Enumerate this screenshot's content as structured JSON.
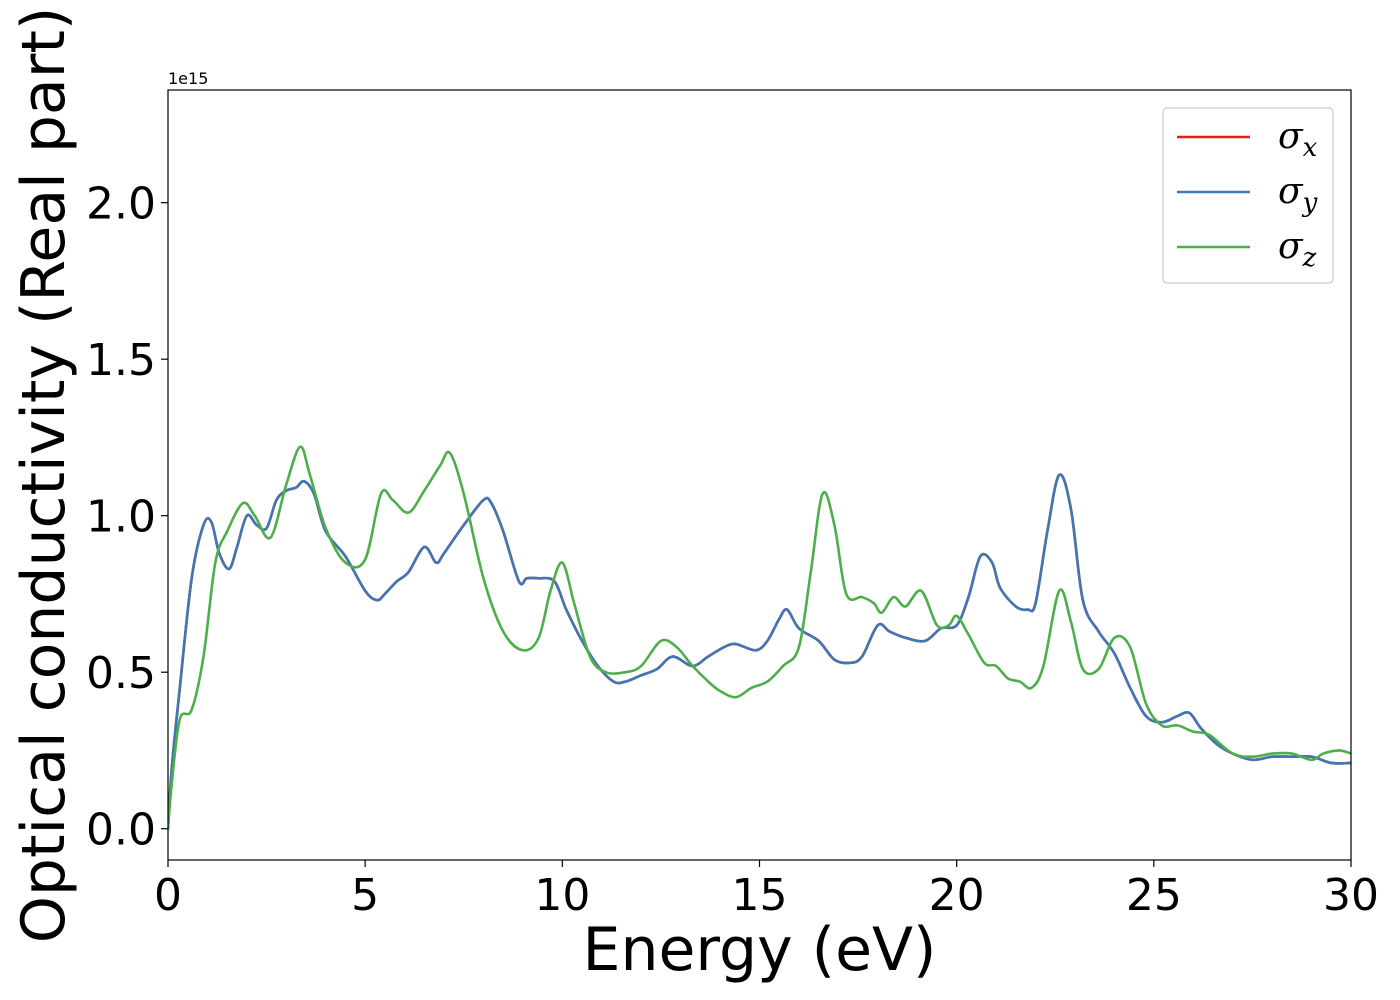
{
  "chart_data": {
    "type": "line",
    "xlabel": "Energy (eV)",
    "ylabel": "Optical conductivity (Real part)",
    "y_offset_label": "1e15",
    "xlim": [
      0,
      30
    ],
    "ylim": [
      -0.1,
      2.36
    ],
    "xticks": [
      0,
      5,
      10,
      15,
      20,
      25,
      30
    ],
    "xtick_labels": [
      "0",
      "5",
      "10",
      "15",
      "20",
      "25",
      "30"
    ],
    "yticks": [
      0.0,
      0.5,
      1.0,
      1.5,
      2.0
    ],
    "ytick_labels": [
      "0.0",
      "0.5",
      "1.0",
      "1.5",
      "2.0"
    ],
    "grid": false,
    "legend_position": "top-right",
    "series": [
      {
        "name": "σx",
        "symbol": "σ",
        "subscript": "x",
        "color": "#e41a1c",
        "x": [
          0,
          0.1,
          0.3,
          0.6,
          0.9,
          1.1,
          1.3,
          1.55,
          1.75,
          2.0,
          2.25,
          2.5,
          2.75,
          3.0,
          3.25,
          3.45,
          3.7,
          4.0,
          4.5,
          5.0,
          5.3,
          5.5,
          5.8,
          6.1,
          6.5,
          6.8,
          7.0,
          7.5,
          8.0,
          8.2,
          8.5,
          8.9,
          9.1,
          9.4,
          9.8,
          10.1,
          10.5,
          10.9,
          11.3,
          11.6,
          12.0,
          12.4,
          12.8,
          13.3,
          13.7,
          14.1,
          14.4,
          14.9,
          15.2,
          15.5,
          15.7,
          16.0,
          16.5,
          16.9,
          17.3,
          17.6,
          18.0,
          18.3,
          18.7,
          19.2,
          19.6,
          20.0,
          20.3,
          20.6,
          20.9,
          21.1,
          21.5,
          21.8,
          22.0,
          22.3,
          22.6,
          22.9,
          23.2,
          23.6,
          24.0,
          24.4,
          24.8,
          25.2,
          25.6,
          25.9,
          26.2,
          26.6,
          27.0,
          27.5,
          28.0,
          28.5,
          29.0,
          29.5,
          30.0
        ],
        "y": [
          0.0,
          0.2,
          0.45,
          0.8,
          0.97,
          0.98,
          0.88,
          0.83,
          0.9,
          1.0,
          0.97,
          0.96,
          1.05,
          1.08,
          1.09,
          1.11,
          1.07,
          0.95,
          0.87,
          0.76,
          0.73,
          0.75,
          0.79,
          0.82,
          0.9,
          0.85,
          0.88,
          0.97,
          1.05,
          1.04,
          0.95,
          0.79,
          0.8,
          0.8,
          0.79,
          0.7,
          0.6,
          0.52,
          0.47,
          0.47,
          0.49,
          0.51,
          0.55,
          0.52,
          0.55,
          0.58,
          0.59,
          0.57,
          0.6,
          0.67,
          0.7,
          0.64,
          0.6,
          0.54,
          0.53,
          0.55,
          0.65,
          0.63,
          0.61,
          0.6,
          0.64,
          0.65,
          0.74,
          0.87,
          0.85,
          0.77,
          0.71,
          0.7,
          0.72,
          0.95,
          1.13,
          1.02,
          0.73,
          0.63,
          0.56,
          0.45,
          0.36,
          0.34,
          0.36,
          0.37,
          0.32,
          0.27,
          0.24,
          0.22,
          0.23,
          0.23,
          0.23,
          0.21,
          0.21
        ]
      },
      {
        "name": "σy",
        "symbol": "σ",
        "subscript": "y",
        "color": "#3f77b4",
        "x": [
          0,
          0.1,
          0.3,
          0.6,
          0.9,
          1.1,
          1.3,
          1.55,
          1.75,
          2.0,
          2.25,
          2.5,
          2.75,
          3.0,
          3.25,
          3.45,
          3.7,
          4.0,
          4.5,
          5.0,
          5.3,
          5.5,
          5.8,
          6.1,
          6.5,
          6.8,
          7.0,
          7.5,
          8.0,
          8.2,
          8.5,
          8.9,
          9.1,
          9.4,
          9.8,
          10.1,
          10.5,
          10.9,
          11.3,
          11.6,
          12.0,
          12.4,
          12.8,
          13.3,
          13.7,
          14.1,
          14.4,
          14.9,
          15.2,
          15.5,
          15.7,
          16.0,
          16.5,
          16.9,
          17.3,
          17.6,
          18.0,
          18.3,
          18.7,
          19.2,
          19.6,
          20.0,
          20.3,
          20.6,
          20.9,
          21.1,
          21.5,
          21.8,
          22.0,
          22.3,
          22.6,
          22.9,
          23.2,
          23.6,
          24.0,
          24.4,
          24.8,
          25.2,
          25.6,
          25.9,
          26.2,
          26.6,
          27.0,
          27.5,
          28.0,
          28.5,
          29.0,
          29.5,
          30.0
        ],
        "y": [
          0.0,
          0.2,
          0.45,
          0.8,
          0.97,
          0.98,
          0.88,
          0.83,
          0.9,
          1.0,
          0.97,
          0.96,
          1.05,
          1.08,
          1.09,
          1.11,
          1.07,
          0.95,
          0.87,
          0.76,
          0.73,
          0.75,
          0.79,
          0.82,
          0.9,
          0.85,
          0.88,
          0.97,
          1.05,
          1.04,
          0.95,
          0.79,
          0.8,
          0.8,
          0.79,
          0.7,
          0.6,
          0.52,
          0.47,
          0.47,
          0.49,
          0.51,
          0.55,
          0.52,
          0.55,
          0.58,
          0.59,
          0.57,
          0.6,
          0.67,
          0.7,
          0.64,
          0.6,
          0.54,
          0.53,
          0.55,
          0.65,
          0.63,
          0.61,
          0.6,
          0.64,
          0.65,
          0.74,
          0.87,
          0.85,
          0.77,
          0.71,
          0.7,
          0.72,
          0.95,
          1.13,
          1.02,
          0.73,
          0.63,
          0.56,
          0.45,
          0.36,
          0.34,
          0.36,
          0.37,
          0.32,
          0.27,
          0.24,
          0.22,
          0.23,
          0.23,
          0.23,
          0.21,
          0.21
        ]
      },
      {
        "name": "σz",
        "symbol": "σ",
        "subscript": "z",
        "color": "#4daf4a",
        "x": [
          0,
          0.1,
          0.3,
          0.6,
          0.9,
          1.2,
          1.5,
          1.9,
          2.2,
          2.6,
          3.0,
          3.35,
          3.6,
          4.0,
          4.5,
          5.0,
          5.4,
          5.7,
          6.1,
          6.5,
          6.9,
          7.15,
          7.5,
          8.0,
          8.5,
          9.0,
          9.4,
          9.7,
          10.0,
          10.3,
          10.7,
          11.1,
          11.6,
          12.0,
          12.5,
          12.9,
          13.3,
          13.7,
          14.0,
          14.4,
          14.8,
          15.2,
          15.6,
          16.0,
          16.3,
          16.6,
          16.9,
          17.2,
          17.6,
          17.9,
          18.1,
          18.4,
          18.7,
          19.1,
          19.5,
          19.8,
          20.0,
          20.3,
          20.7,
          21.0,
          21.3,
          21.6,
          21.9,
          22.2,
          22.6,
          22.9,
          23.2,
          23.6,
          24.0,
          24.4,
          24.8,
          25.2,
          25.6,
          26.0,
          26.4,
          27.0,
          27.5,
          28.0,
          28.5,
          29.0,
          29.3,
          29.7,
          30.0
        ],
        "y": [
          0.0,
          0.15,
          0.35,
          0.38,
          0.55,
          0.85,
          0.95,
          1.04,
          1.0,
          0.93,
          1.1,
          1.22,
          1.13,
          0.96,
          0.85,
          0.86,
          1.07,
          1.05,
          1.01,
          1.08,
          1.16,
          1.2,
          1.07,
          0.8,
          0.63,
          0.57,
          0.61,
          0.76,
          0.85,
          0.72,
          0.55,
          0.5,
          0.5,
          0.52,
          0.6,
          0.58,
          0.52,
          0.47,
          0.44,
          0.42,
          0.45,
          0.47,
          0.52,
          0.58,
          0.82,
          1.07,
          0.97,
          0.75,
          0.74,
          0.72,
          0.69,
          0.74,
          0.71,
          0.76,
          0.65,
          0.65,
          0.68,
          0.62,
          0.53,
          0.52,
          0.48,
          0.47,
          0.45,
          0.52,
          0.76,
          0.66,
          0.51,
          0.51,
          0.61,
          0.58,
          0.4,
          0.33,
          0.33,
          0.31,
          0.3,
          0.24,
          0.23,
          0.24,
          0.24,
          0.22,
          0.24,
          0.25,
          0.24
        ]
      }
    ]
  }
}
